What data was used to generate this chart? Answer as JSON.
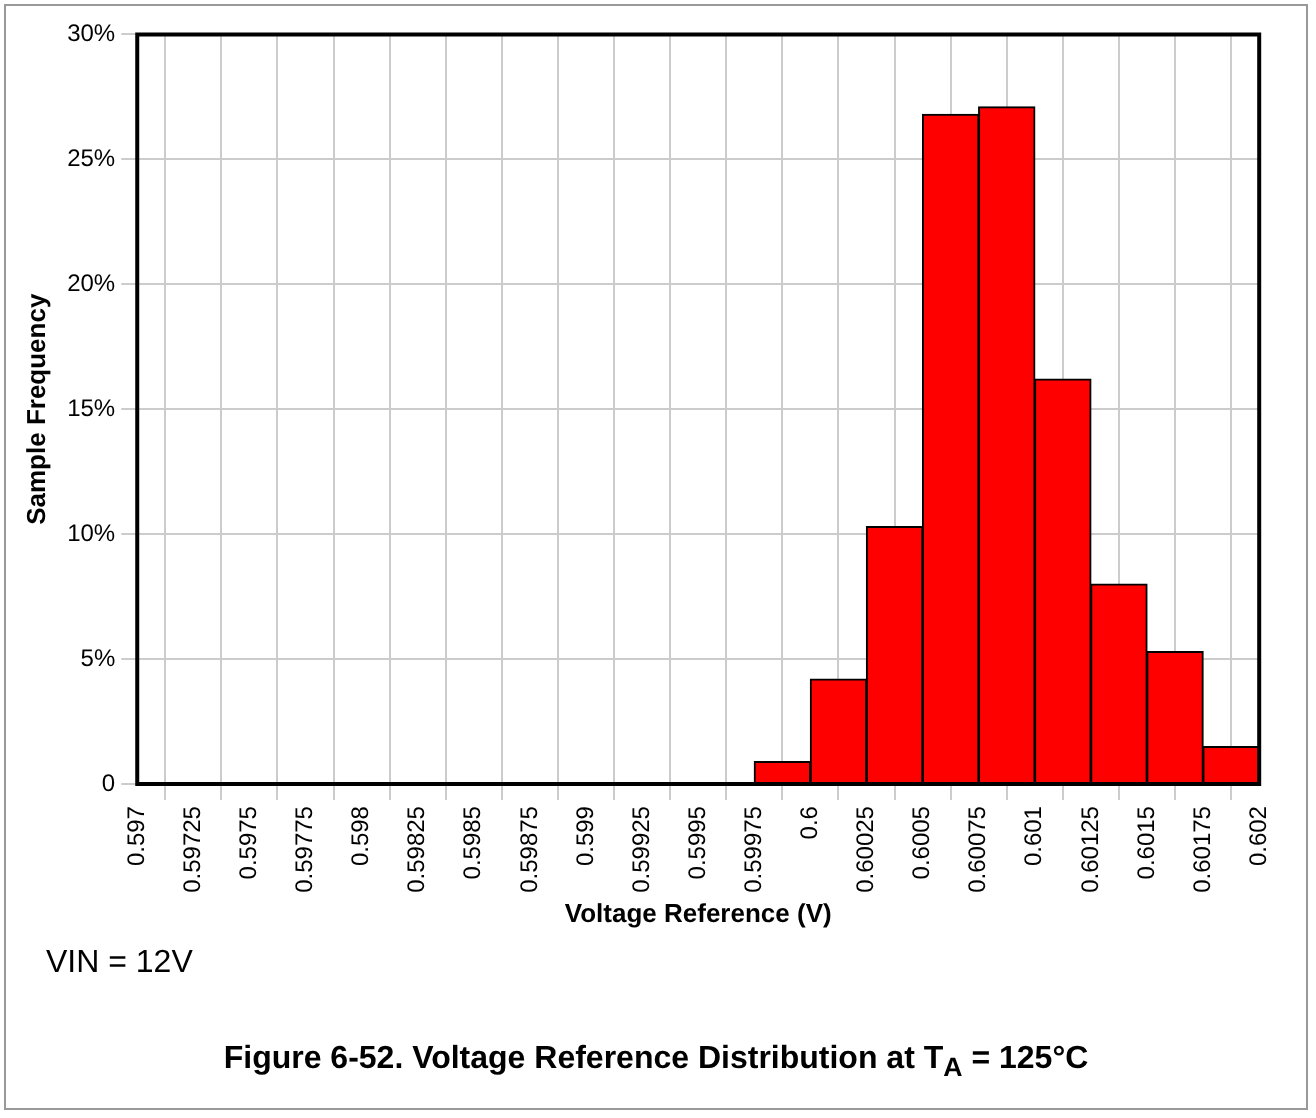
{
  "chart_data": {
    "type": "histogram",
    "title": "Figure 6-52. Voltage Reference Distribution at T$_{A}$ = 125°C",
    "xlabel": "Voltage Reference (V)",
    "ylabel": "Sample Frequency",
    "annotations": [
      "VIN = 12V"
    ],
    "bins": [
      0.597,
      0.59725,
      0.5975,
      0.59775,
      0.598,
      0.59825,
      0.5985,
      0.59875,
      0.599,
      0.59925,
      0.5995,
      0.59975,
      0.6,
      0.60025,
      0.6005,
      0.60075,
      0.601,
      0.60125,
      0.6015,
      0.60175,
      0.602
    ],
    "values": [
      0,
      0,
      0,
      0,
      0,
      0,
      0,
      0,
      0,
      0,
      0,
      0.9,
      4.2,
      10.3,
      26.8,
      27.1,
      16.2,
      8.0,
      5.3,
      1.5
    ],
    "color": "#ff0000",
    "xlim": [
      0.597,
      0.602
    ],
    "xticks": [
      0.597,
      0.59725,
      0.5975,
      0.59775,
      0.598,
      0.59825,
      0.5985,
      0.59875,
      0.599,
      0.59925,
      0.5995,
      0.59975,
      0.6,
      0.60025,
      0.6005,
      0.60075,
      0.601,
      0.60125,
      0.6015,
      0.60175,
      0.602
    ],
    "ylim": [
      0,
      30
    ],
    "yticks": [
      0,
      {
        "value": 5,
        "label": "5%"
      },
      {
        "value": 10,
        "label": "10%"
      },
      {
        "value": 15,
        "label": "15%"
      },
      {
        "value": 20,
        "label": "20%"
      },
      {
        "value": 25,
        "label": "25%"
      },
      {
        "value": 30,
        "label": "30%"
      }
    ],
    "grid": true
  }
}
